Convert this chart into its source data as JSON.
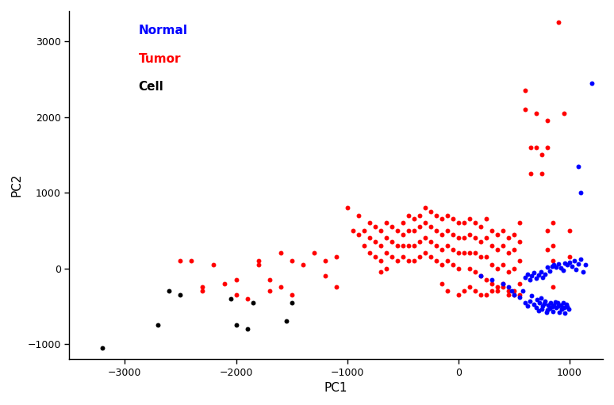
{
  "title": "",
  "xlabel": "PC1",
  "ylabel": "PC2",
  "xlim": [
    -3500,
    1300
  ],
  "ylim": [
    -1200,
    3400
  ],
  "xticks": [
    -3000,
    -2000,
    -1000,
    0,
    1000
  ],
  "yticks": [
    -1000,
    0,
    1000,
    2000,
    3000
  ],
  "legend": [
    {
      "label": "Normal",
      "color": "blue"
    },
    {
      "label": "Tumor",
      "color": "red"
    },
    {
      "label": "Cell",
      "color": "black"
    }
  ],
  "normal_points": [
    [
      500,
      -350
    ],
    [
      550,
      -380
    ],
    [
      580,
      -300
    ],
    [
      600,
      -450
    ],
    [
      620,
      -500
    ],
    [
      640,
      -430
    ],
    [
      660,
      -360
    ],
    [
      680,
      -480
    ],
    [
      700,
      -520
    ],
    [
      710,
      -410
    ],
    [
      720,
      -560
    ],
    [
      730,
      -460
    ],
    [
      740,
      -390
    ],
    [
      750,
      -540
    ],
    [
      760,
      -500
    ],
    [
      770,
      -470
    ],
    [
      780,
      -430
    ],
    [
      790,
      -580
    ],
    [
      800,
      -550
    ],
    [
      810,
      -490
    ],
    [
      820,
      -530
    ],
    [
      830,
      -460
    ],
    [
      840,
      -510
    ],
    [
      850,
      -570
    ],
    [
      860,
      -490
    ],
    [
      870,
      -440
    ],
    [
      880,
      -520
    ],
    [
      890,
      -460
    ],
    [
      900,
      -500
    ],
    [
      910,
      -580
    ],
    [
      920,
      -490
    ],
    [
      930,
      -540
    ],
    [
      940,
      -460
    ],
    [
      950,
      -520
    ],
    [
      960,
      -590
    ],
    [
      970,
      -480
    ],
    [
      980,
      -510
    ],
    [
      990,
      -540
    ],
    [
      600,
      -120
    ],
    [
      620,
      -80
    ],
    [
      640,
      -150
    ],
    [
      660,
      -100
    ],
    [
      680,
      -60
    ],
    [
      700,
      -130
    ],
    [
      720,
      -90
    ],
    [
      740,
      -50
    ],
    [
      760,
      -120
    ],
    [
      780,
      -80
    ],
    [
      800,
      20
    ],
    [
      820,
      -40
    ],
    [
      840,
      30
    ],
    [
      860,
      50
    ],
    [
      880,
      20
    ],
    [
      900,
      60
    ],
    [
      920,
      10
    ],
    [
      940,
      -30
    ],
    [
      960,
      70
    ],
    [
      980,
      50
    ],
    [
      1000,
      80
    ],
    [
      1020,
      30
    ],
    [
      1040,
      100
    ],
    [
      1060,
      -20
    ],
    [
      1080,
      60
    ],
    [
      1100,
      120
    ],
    [
      1120,
      -50
    ],
    [
      1140,
      50
    ],
    [
      1200,
      2450
    ],
    [
      1080,
      1350
    ],
    [
      1100,
      1000
    ],
    [
      200,
      -100
    ],
    [
      300,
      -150
    ],
    [
      400,
      -200
    ],
    [
      450,
      -250
    ],
    [
      480,
      -300
    ]
  ],
  "tumor_points": [
    [
      -2500,
      100
    ],
    [
      -2300,
      -300
    ],
    [
      -2300,
      -250
    ],
    [
      -2100,
      -200
    ],
    [
      -2000,
      -350
    ],
    [
      -2000,
      -150
    ],
    [
      -1900,
      -400
    ],
    [
      -1800,
      50
    ],
    [
      -1700,
      -300
    ],
    [
      -1700,
      -150
    ],
    [
      -1600,
      200
    ],
    [
      -1600,
      -250
    ],
    [
      -1500,
      100
    ],
    [
      -1500,
      -350
    ],
    [
      -1400,
      50
    ],
    [
      -1300,
      200
    ],
    [
      -1200,
      100
    ],
    [
      -1200,
      -100
    ],
    [
      -1100,
      150
    ],
    [
      -1100,
      -250
    ],
    [
      -1000,
      800
    ],
    [
      -950,
      500
    ],
    [
      -900,
      700
    ],
    [
      -900,
      450
    ],
    [
      -850,
      500
    ],
    [
      -850,
      300
    ],
    [
      -800,
      600
    ],
    [
      -800,
      400
    ],
    [
      -800,
      200
    ],
    [
      -750,
      550
    ],
    [
      -750,
      350
    ],
    [
      -750,
      150
    ],
    [
      -700,
      500
    ],
    [
      -700,
      300
    ],
    [
      -700,
      100
    ],
    [
      -700,
      -50
    ],
    [
      -650,
      600
    ],
    [
      -650,
      400
    ],
    [
      -650,
      200
    ],
    [
      -650,
      0
    ],
    [
      -600,
      550
    ],
    [
      -600,
      350
    ],
    [
      -600,
      150
    ],
    [
      -550,
      500
    ],
    [
      -550,
      300
    ],
    [
      -550,
      100
    ],
    [
      -500,
      600
    ],
    [
      -500,
      450
    ],
    [
      -500,
      300
    ],
    [
      -500,
      150
    ],
    [
      -450,
      700
    ],
    [
      -450,
      500
    ],
    [
      -450,
      300
    ],
    [
      -450,
      100
    ],
    [
      -400,
      650
    ],
    [
      -400,
      500
    ],
    [
      -400,
      300
    ],
    [
      -400,
      100
    ],
    [
      -350,
      700
    ],
    [
      -350,
      550
    ],
    [
      -350,
      350
    ],
    [
      -350,
      150
    ],
    [
      -300,
      800
    ],
    [
      -300,
      600
    ],
    [
      -300,
      400
    ],
    [
      -300,
      200
    ],
    [
      -250,
      750
    ],
    [
      -250,
      550
    ],
    [
      -250,
      350
    ],
    [
      -250,
      150
    ],
    [
      -200,
      700
    ],
    [
      -200,
      500
    ],
    [
      -200,
      300
    ],
    [
      -200,
      100
    ],
    [
      -150,
      650
    ],
    [
      -150,
      450
    ],
    [
      -150,
      250
    ],
    [
      -150,
      50
    ],
    [
      -100,
      700
    ],
    [
      -100,
      500
    ],
    [
      -100,
      300
    ],
    [
      -100,
      100
    ],
    [
      -50,
      650
    ],
    [
      -50,
      450
    ],
    [
      -50,
      250
    ],
    [
      -50,
      50
    ],
    [
      0,
      600
    ],
    [
      0,
      400
    ],
    [
      0,
      200
    ],
    [
      0,
      0
    ],
    [
      50,
      600
    ],
    [
      50,
      400
    ],
    [
      50,
      200
    ],
    [
      100,
      650
    ],
    [
      100,
      450
    ],
    [
      100,
      200
    ],
    [
      100,
      0
    ],
    [
      150,
      600
    ],
    [
      150,
      400
    ],
    [
      150,
      200
    ],
    [
      150,
      -50
    ],
    [
      200,
      550
    ],
    [
      200,
      350
    ],
    [
      200,
      150
    ],
    [
      200,
      -100
    ],
    [
      250,
      650
    ],
    [
      250,
      400
    ],
    [
      250,
      150
    ],
    [
      250,
      -150
    ],
    [
      300,
      500
    ],
    [
      300,
      300
    ],
    [
      300,
      50
    ],
    [
      300,
      -200
    ],
    [
      350,
      450
    ],
    [
      350,
      250
    ],
    [
      350,
      0
    ],
    [
      350,
      -250
    ],
    [
      400,
      500
    ],
    [
      400,
      300
    ],
    [
      400,
      50
    ],
    [
      400,
      -200
    ],
    [
      450,
      400
    ],
    [
      450,
      200
    ],
    [
      450,
      -50
    ],
    [
      450,
      -300
    ],
    [
      500,
      450
    ],
    [
      500,
      250
    ],
    [
      500,
      0
    ],
    [
      500,
      -350
    ],
    [
      550,
      600
    ],
    [
      550,
      350
    ],
    [
      550,
      100
    ],
    [
      550,
      -200
    ],
    [
      600,
      2350
    ],
    [
      600,
      2100
    ],
    [
      650,
      1600
    ],
    [
      650,
      1250
    ],
    [
      700,
      2050
    ],
    [
      700,
      1600
    ],
    [
      750,
      1500
    ],
    [
      750,
      1250
    ],
    [
      800,
      1950
    ],
    [
      800,
      1600
    ],
    [
      800,
      500
    ],
    [
      800,
      250
    ],
    [
      850,
      600
    ],
    [
      850,
      300
    ],
    [
      850,
      100
    ],
    [
      850,
      -250
    ],
    [
      900,
      3250
    ],
    [
      950,
      2050
    ],
    [
      1000,
      500
    ],
    [
      1000,
      150
    ],
    [
      -2400,
      100
    ],
    [
      -2200,
      50
    ],
    [
      -1800,
      100
    ],
    [
      -150,
      -200
    ],
    [
      -100,
      -300
    ],
    [
      0,
      -350
    ],
    [
      50,
      -300
    ],
    [
      100,
      -250
    ],
    [
      150,
      -300
    ],
    [
      200,
      -350
    ],
    [
      250,
      -350
    ],
    [
      300,
      -300
    ],
    [
      350,
      -300
    ],
    [
      400,
      -250
    ],
    [
      450,
      -350
    ],
    [
      500,
      -300
    ],
    [
      550,
      -350
    ]
  ],
  "cell_points": [
    [
      -3200,
      -1050
    ],
    [
      -2700,
      -750
    ],
    [
      -2600,
      -300
    ],
    [
      -2500,
      -350
    ],
    [
      -2050,
      -400
    ],
    [
      -2000,
      -750
    ],
    [
      -1900,
      -800
    ],
    [
      -1850,
      -450
    ],
    [
      -1550,
      -700
    ],
    [
      -1500,
      -450
    ]
  ],
  "marker_size": 18,
  "bg_color": "#ffffff"
}
